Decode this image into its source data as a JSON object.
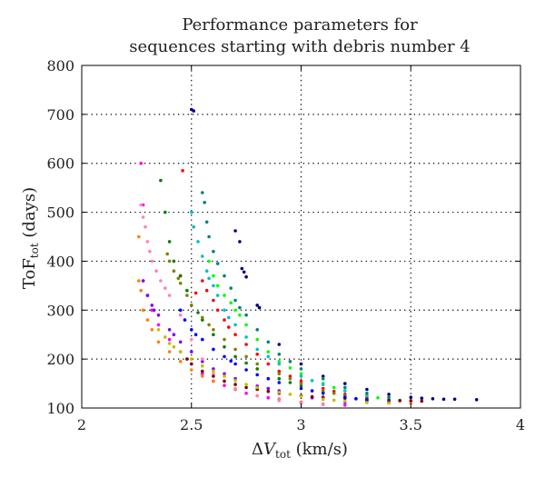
{
  "chart_data": {
    "type": "scatter",
    "title_lines": [
      "Performance parameters for",
      "sequences starting with debris number 4"
    ],
    "xlabel": {
      "prefix": "Δ",
      "italic": "V",
      "sub": "tot",
      "unit": " (km/s)"
    },
    "ylabel": {
      "main": "ToF",
      "sub": "tot",
      "unit": " (days)"
    },
    "xlim": [
      2,
      4
    ],
    "ylim": [
      100,
      800
    ],
    "xticks": [
      2,
      2.5,
      3,
      3.5,
      4
    ],
    "yticks": [
      100,
      200,
      300,
      400,
      500,
      600,
      700,
      800
    ],
    "xtick_labels": [
      "2",
      "2.5",
      "3",
      "3.5",
      "4"
    ],
    "ytick_labels": [
      "100",
      "200",
      "300",
      "400",
      "500",
      "600",
      "700",
      "800"
    ],
    "grid": "dotted",
    "legend": "none",
    "series": [
      {
        "color": "#000080",
        "points": [
          [
            2.5,
            710
          ],
          [
            2.51,
            707
          ],
          [
            2.7,
            462
          ],
          [
            2.72,
            440
          ],
          [
            2.73,
            385
          ],
          [
            2.74,
            378
          ],
          [
            2.75,
            368
          ],
          [
            2.8,
            310
          ],
          [
            2.81,
            305
          ],
          [
            2.9,
            230
          ],
          [
            3.0,
            190
          ],
          [
            3.1,
            165
          ],
          [
            3.2,
            150
          ],
          [
            3.3,
            138
          ],
          [
            3.4,
            128
          ],
          [
            3.5,
            122
          ],
          [
            3.6,
            119
          ],
          [
            3.7,
            118
          ],
          [
            3.8,
            117
          ],
          [
            3.65,
            118
          ],
          [
            3.55,
            120
          ]
        ]
      },
      {
        "color": "#ff00ff",
        "points": [
          [
            2.27,
            600
          ],
          [
            2.28,
            515
          ],
          [
            2.28,
            360
          ],
          [
            2.3,
            330
          ],
          [
            2.32,
            300
          ],
          [
            2.35,
            270
          ],
          [
            2.4,
            240
          ],
          [
            2.45,
            215
          ],
          [
            2.5,
            190
          ],
          [
            2.55,
            170
          ],
          [
            2.6,
            155
          ],
          [
            2.7,
            138
          ],
          [
            2.8,
            125
          ],
          [
            2.9,
            118
          ],
          [
            3.0,
            112
          ],
          [
            3.1,
            108
          ],
          [
            3.2,
            106
          ],
          [
            2.65,
            146
          ],
          [
            2.75,
            130
          ],
          [
            2.85,
            121
          ]
        ]
      },
      {
        "color": "#ff8000",
        "points": [
          [
            2.26,
            450
          ],
          [
            2.26,
            360
          ],
          [
            2.27,
            340
          ],
          [
            2.28,
            300
          ],
          [
            2.3,
            280
          ],
          [
            2.32,
            260
          ],
          [
            2.35,
            235
          ],
          [
            2.4,
            215
          ],
          [
            2.45,
            195
          ],
          [
            2.5,
            178
          ],
          [
            2.6,
            155
          ],
          [
            2.7,
            138
          ],
          [
            2.8,
            125
          ],
          [
            2.9,
            117
          ],
          [
            3.0,
            112
          ],
          [
            3.1,
            108
          ],
          [
            3.4,
            112
          ],
          [
            3.5,
            110
          ],
          [
            3.3,
            115
          ],
          [
            2.55,
            165
          ]
        ]
      },
      {
        "color": "#ff0000",
        "points": [
          [
            2.46,
            585
          ],
          [
            2.45,
            370
          ],
          [
            2.55,
            360
          ],
          [
            2.57,
            340
          ],
          [
            2.6,
            320
          ],
          [
            2.62,
            300
          ],
          [
            2.65,
            280
          ],
          [
            2.7,
            250
          ],
          [
            2.75,
            230
          ],
          [
            2.8,
            210
          ],
          [
            2.85,
            190
          ],
          [
            2.9,
            175
          ],
          [
            3.0,
            155
          ],
          [
            3.1,
            140
          ],
          [
            3.2,
            128
          ],
          [
            3.3,
            120
          ],
          [
            2.52,
            335
          ],
          [
            2.67,
            265
          ],
          [
            2.95,
            165
          ],
          [
            3.15,
            134
          ]
        ]
      },
      {
        "color": "#00ff00",
        "points": [
          [
            2.58,
            400
          ],
          [
            2.6,
            370
          ],
          [
            2.62,
            350
          ],
          [
            2.65,
            330
          ],
          [
            2.68,
            315
          ],
          [
            2.7,
            300
          ],
          [
            2.75,
            270
          ],
          [
            2.8,
            240
          ],
          [
            2.85,
            215
          ],
          [
            2.9,
            195
          ],
          [
            3.0,
            170
          ],
          [
            3.1,
            150
          ],
          [
            3.2,
            135
          ],
          [
            3.3,
            125
          ],
          [
            3.4,
            118
          ],
          [
            3.45,
            116
          ],
          [
            2.72,
            290
          ],
          [
            2.95,
            182
          ],
          [
            3.15,
            142
          ],
          [
            3.35,
            121
          ]
        ]
      },
      {
        "color": "#00c0c0",
        "points": [
          [
            2.5,
            500
          ],
          [
            2.51,
            470
          ],
          [
            2.53,
            440
          ],
          [
            2.55,
            410
          ],
          [
            2.57,
            380
          ],
          [
            2.6,
            350
          ],
          [
            2.62,
            330
          ],
          [
            2.65,
            300
          ],
          [
            2.7,
            270
          ],
          [
            2.75,
            245
          ],
          [
            2.8,
            220
          ],
          [
            2.9,
            190
          ],
          [
            3.0,
            165
          ],
          [
            3.1,
            148
          ],
          [
            3.2,
            135
          ],
          [
            3.3,
            125
          ],
          [
            2.58,
            365
          ],
          [
            2.67,
            285
          ],
          [
            2.85,
            205
          ],
          [
            3.05,
            156
          ]
        ]
      },
      {
        "color": "#008000",
        "points": [
          [
            2.38,
            500
          ],
          [
            2.4,
            440
          ],
          [
            2.42,
            400
          ],
          [
            2.45,
            370
          ],
          [
            2.48,
            340
          ],
          [
            2.5,
            310
          ],
          [
            2.55,
            280
          ],
          [
            2.6,
            250
          ],
          [
            2.65,
            225
          ],
          [
            2.7,
            205
          ],
          [
            2.8,
            180
          ],
          [
            2.9,
            160
          ],
          [
            3.0,
            145
          ],
          [
            3.1,
            132
          ],
          [
            3.2,
            122
          ],
          [
            3.3,
            116
          ],
          [
            2.36,
            565
          ],
          [
            2.53,
            295
          ],
          [
            2.75,
            192
          ],
          [
            2.95,
            152
          ]
        ]
      },
      {
        "color": "#808000",
        "points": [
          [
            2.39,
            415
          ],
          [
            2.4,
            400
          ],
          [
            2.42,
            380
          ],
          [
            2.45,
            355
          ],
          [
            2.48,
            330
          ],
          [
            2.5,
            310
          ],
          [
            2.55,
            285
          ],
          [
            2.6,
            260
          ],
          [
            2.65,
            240
          ],
          [
            2.7,
            220
          ],
          [
            2.8,
            190
          ],
          [
            2.9,
            170
          ],
          [
            3.0,
            150
          ],
          [
            3.1,
            135
          ],
          [
            3.2,
            125
          ],
          [
            2.44,
            365
          ],
          [
            2.58,
            270
          ],
          [
            2.75,
            205
          ],
          [
            2.95,
            160
          ],
          [
            3.15,
            130
          ]
        ]
      },
      {
        "color": "#8000ff",
        "points": [
          [
            2.28,
            360
          ],
          [
            2.3,
            330
          ],
          [
            2.32,
            310
          ],
          [
            2.35,
            290
          ],
          [
            2.4,
            260
          ],
          [
            2.45,
            235
          ],
          [
            2.5,
            215
          ],
          [
            2.55,
            195
          ],
          [
            2.6,
            180
          ],
          [
            2.7,
            160
          ],
          [
            2.8,
            145
          ],
          [
            2.9,
            135
          ],
          [
            3.0,
            125
          ],
          [
            3.1,
            118
          ],
          [
            3.2,
            112
          ],
          [
            2.33,
            300
          ],
          [
            2.42,
            250
          ],
          [
            2.65,
            170
          ],
          [
            2.85,
            140
          ],
          [
            3.05,
            121
          ]
        ]
      },
      {
        "color": "#ff80c0",
        "points": [
          [
            2.27,
            515
          ],
          [
            2.28,
            490
          ],
          [
            2.29,
            470
          ],
          [
            2.3,
            440
          ],
          [
            2.31,
            420
          ],
          [
            2.32,
            400
          ],
          [
            2.34,
            380
          ],
          [
            2.36,
            360
          ],
          [
            2.4,
            330
          ],
          [
            2.45,
            290
          ],
          [
            2.5,
            240
          ],
          [
            2.55,
            200
          ],
          [
            2.6,
            170
          ],
          [
            2.7,
            140
          ],
          [
            2.8,
            125
          ],
          [
            2.9,
            115
          ],
          [
            3.0,
            110
          ],
          [
            3.1,
            107
          ],
          [
            2.38,
            345
          ],
          [
            2.65,
            155
          ]
        ]
      },
      {
        "color": "#800000",
        "points": [
          [
            2.48,
            200
          ],
          [
            2.5,
            190
          ],
          [
            2.55,
            175
          ],
          [
            2.6,
            165
          ],
          [
            2.65,
            155
          ],
          [
            2.7,
            148
          ],
          [
            2.75,
            142
          ],
          [
            2.8,
            138
          ],
          [
            2.9,
            130
          ],
          [
            3.0,
            125
          ],
          [
            3.1,
            122
          ],
          [
            3.2,
            120
          ],
          [
            3.3,
            118
          ],
          [
            3.4,
            116
          ],
          [
            3.5,
            115
          ],
          [
            2.85,
            134
          ],
          [
            3.05,
            123
          ],
          [
            3.25,
            119
          ],
          [
            3.45,
            115
          ],
          [
            3.55,
            114
          ]
        ]
      },
      {
        "color": "#0000ff",
        "points": [
          [
            2.45,
            300
          ],
          [
            2.47,
            280
          ],
          [
            2.5,
            260
          ],
          [
            2.55,
            240
          ],
          [
            2.6,
            220
          ],
          [
            2.65,
            205
          ],
          [
            2.7,
            190
          ],
          [
            2.75,
            178
          ],
          [
            2.8,
            168
          ],
          [
            2.9,
            152
          ],
          [
            3.0,
            140
          ],
          [
            3.1,
            130
          ],
          [
            3.2,
            122
          ],
          [
            3.3,
            116
          ],
          [
            3.4,
            112
          ],
          [
            2.52,
            250
          ],
          [
            2.68,
            196
          ],
          [
            2.85,
            160
          ],
          [
            3.05,
            135
          ],
          [
            3.25,
            119
          ]
        ]
      },
      {
        "color": "#008080",
        "points": [
          [
            2.55,
            540
          ],
          [
            2.56,
            520
          ],
          [
            2.57,
            480
          ],
          [
            2.58,
            450
          ],
          [
            2.6,
            420
          ],
          [
            2.62,
            395
          ],
          [
            2.65,
            370
          ],
          [
            2.68,
            345
          ],
          [
            2.7,
            320
          ],
          [
            2.75,
            290
          ],
          [
            2.8,
            260
          ],
          [
            2.85,
            235
          ],
          [
            2.9,
            210
          ],
          [
            3.0,
            180
          ],
          [
            3.1,
            160
          ],
          [
            3.2,
            142
          ],
          [
            3.3,
            130
          ],
          [
            3.4,
            122
          ],
          [
            2.72,
            305
          ],
          [
            2.95,
            195
          ]
        ]
      },
      {
        "color": "#c0c000",
        "points": [
          [
            2.35,
            260
          ],
          [
            2.38,
            245
          ],
          [
            2.4,
            232
          ],
          [
            2.45,
            215
          ],
          [
            2.5,
            200
          ],
          [
            2.55,
            186
          ],
          [
            2.6,
            175
          ],
          [
            2.65,
            165
          ],
          [
            2.7,
            156
          ],
          [
            2.8,
            142
          ],
          [
            2.9,
            132
          ],
          [
            3.0,
            124
          ],
          [
            3.1,
            118
          ],
          [
            3.2,
            114
          ],
          [
            3.3,
            111
          ],
          [
            3.4,
            110
          ],
          [
            2.42,
            225
          ],
          [
            2.75,
            148
          ],
          [
            2.95,
            128
          ],
          [
            3.15,
            116
          ]
        ]
      }
    ]
  }
}
